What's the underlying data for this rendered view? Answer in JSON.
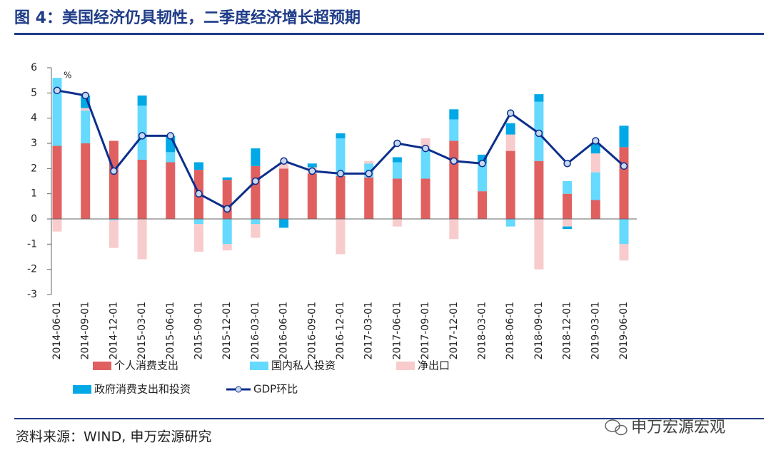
{
  "header": {
    "title": "图 4：美国经济仍具韧性，二季度经济增长超预期"
  },
  "chart_data": {
    "type": "bar",
    "stacked": true,
    "y_unit": "%",
    "categories": [
      "2014-06-01",
      "2014-09-01",
      "2014-12-01",
      "2015-03-01",
      "2015-06-01",
      "2015-09-01",
      "2015-12-01",
      "2016-03-01",
      "2016-06-01",
      "2016-09-01",
      "2016-12-01",
      "2017-03-01",
      "2017-06-01",
      "2017-09-01",
      "2017-12-01",
      "2018-03-01",
      "2018-06-01",
      "2018-09-01",
      "2018-12-01",
      "2019-03-01",
      "2019-06-01"
    ],
    "series": [
      {
        "name": "个人消费支出",
        "color": "#e06060",
        "values": [
          2.9,
          3.0,
          3.1,
          2.35,
          2.25,
          1.95,
          1.55,
          2.1,
          2.0,
          1.8,
          1.7,
          1.65,
          1.6,
          1.6,
          3.1,
          1.1,
          2.7,
          2.3,
          1.0,
          0.75,
          2.85
        ]
      },
      {
        "name": "国内私人投资",
        "color": "#66d9ff",
        "values": [
          2.7,
          1.3,
          -0.05,
          2.15,
          0.4,
          -0.2,
          -1.0,
          -0.2,
          0,
          0,
          1.5,
          0.55,
          0.65,
          1.2,
          0.85,
          1.1,
          -0.3,
          2.35,
          0.5,
          1.1,
          -1.0
        ]
      },
      {
        "name": "净出口",
        "color": "#f8cccc",
        "values": [
          -0.5,
          0.1,
          -1.1,
          -1.6,
          0,
          -1.1,
          -0.25,
          -0.55,
          0.2,
          0.25,
          -1.4,
          0.1,
          -0.3,
          0.4,
          -0.8,
          0,
          0.65,
          -2.0,
          -0.3,
          0.75,
          -0.65
        ]
      },
      {
        "name": "政府消费支出和投资",
        "color": "#00a8e6",
        "values": [
          0,
          0.5,
          0,
          0.4,
          0.65,
          0.3,
          0.1,
          0.7,
          -0.35,
          0.15,
          0.2,
          0,
          0.2,
          0,
          0.4,
          0.35,
          0.45,
          0.3,
          -0.1,
          0.4,
          0.85
        ]
      },
      {
        "name": "GDP环比",
        "color": "#0c2f8c",
        "type": "line",
        "values": [
          5.1,
          4.9,
          1.9,
          3.3,
          3.3,
          1.0,
          0.4,
          1.5,
          2.3,
          1.9,
          1.8,
          1.8,
          3.0,
          2.8,
          2.3,
          2.2,
          4.2,
          3.4,
          2.2,
          3.1,
          2.1
        ]
      }
    ],
    "ylim": [
      -3,
      6
    ],
    "yticks": [
      -3,
      -2,
      -1,
      0,
      1,
      2,
      3,
      4,
      5,
      6
    ]
  },
  "footer": {
    "source": "资料来源：WIND, 申万宏源研究",
    "watermark": "申万宏源宏观"
  }
}
